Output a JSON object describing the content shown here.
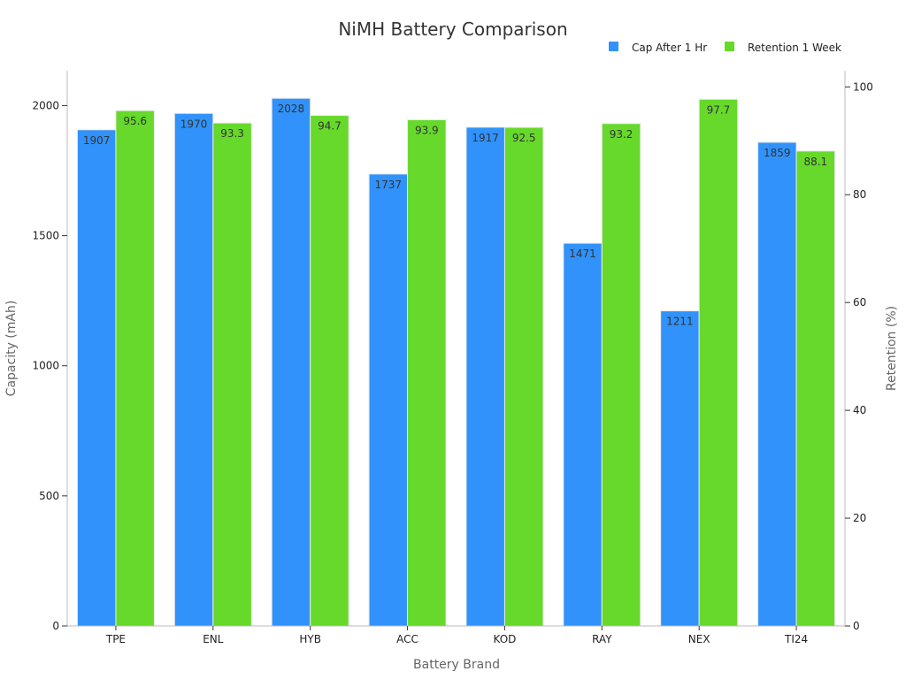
{
  "chart_data": {
    "type": "bar",
    "title": "NiMH Battery Comparison",
    "xlabel": "Battery Brand",
    "ylabel": "Capacity (mAh)",
    "y2label": "Retention (%)",
    "categories": [
      "TPE",
      "ENL",
      "HYB",
      "ACC",
      "KOD",
      "RAY",
      "NEX",
      "TI24"
    ],
    "series": [
      {
        "name": "Cap After 1 Hr",
        "axis": "left",
        "color": "#3092fa",
        "values": [
          1907,
          1970,
          2028,
          1737,
          1917,
          1471,
          1211,
          1859
        ],
        "labels": [
          "1907",
          "1970",
          "2028",
          "1737",
          "1917",
          "1471",
          "1211",
          "1859"
        ]
      },
      {
        "name": "Retention 1 Week",
        "axis": "right",
        "color": "#66d92a",
        "values": [
          95.6,
          93.3,
          94.7,
          93.9,
          92.5,
          93.2,
          97.7,
          88.1
        ],
        "labels": [
          "95.6",
          "93.3",
          "94.7",
          "93.9",
          "92.5",
          "93.2",
          "97.7",
          "88.1"
        ]
      }
    ],
    "ylim": [
      0,
      2134
    ],
    "y2lim": [
      0,
      103
    ],
    "yticks": [
      0,
      500,
      1000,
      1500,
      2000
    ],
    "ytick_labels": [
      "0",
      "500",
      "1000",
      "1500",
      "2000"
    ],
    "y2ticks": [
      0,
      20,
      40,
      60,
      80,
      100
    ],
    "y2tick_labels": [
      "0",
      "20",
      "40",
      "60",
      "80",
      "100"
    ],
    "grid": false,
    "legend_position": "top-right"
  }
}
